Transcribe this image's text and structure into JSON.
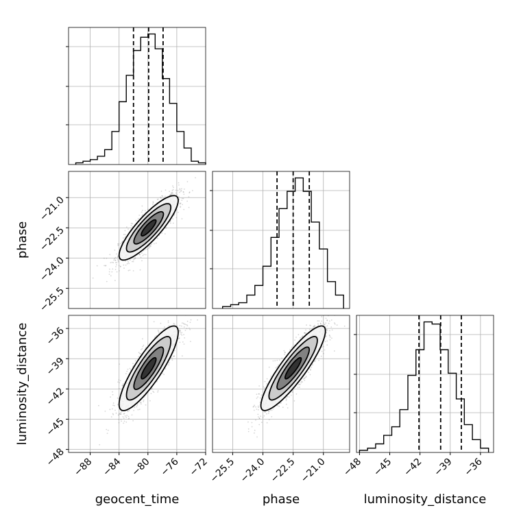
{
  "chart_data": {
    "type": "corner",
    "parameters": [
      "geocent_time",
      "phase",
      "luminosity_distance"
    ],
    "axis_labels": {
      "x": [
        "geocent_time",
        "phase",
        "luminosity_distance"
      ],
      "y": [
        "phase",
        "luminosity_distance"
      ]
    },
    "ranges": {
      "geocent_time": [
        -91,
        -72
      ],
      "phase": [
        -26.5,
        -19.7
      ],
      "luminosity_distance": [
        -48.3,
        -34.7
      ]
    },
    "ticks": {
      "geocent_time": [
        "−88",
        "−84",
        "−80",
        "−76",
        "−72"
      ],
      "phase": [
        "−25.5",
        "−24.0",
        "−22.5",
        "−21.0"
      ],
      "luminosity_distance": [
        "−48",
        "−45",
        "−42",
        "−39",
        "−36"
      ]
    },
    "tick_values": {
      "geocent_time": [
        -88,
        -84,
        -80,
        -76,
        -72
      ],
      "phase": [
        -25.5,
        -24.0,
        -22.5,
        -21.0
      ],
      "luminosity_distance": [
        -48,
        -45,
        -42,
        -39,
        -36
      ]
    },
    "histograms": {
      "geocent_time": {
        "bin_edges": [
          -90,
          -89,
          -88,
          -87,
          -86,
          -85,
          -84,
          -83,
          -82,
          -81,
          -80,
          -79,
          -78,
          -77,
          -76,
          -75,
          -74,
          -73,
          -72
        ],
        "counts": [
          1,
          2,
          3,
          5,
          9,
          20,
          38,
          54,
          69,
          77,
          79,
          70,
          52,
          37,
          20,
          10,
          2,
          1
        ]
      },
      "phase": {
        "bin_edges": [
          -26.0,
          -25.6,
          -25.2,
          -24.8,
          -24.4,
          -24.0,
          -23.6,
          -23.2,
          -22.8,
          -22.4,
          -22.0,
          -21.6,
          -21.2,
          -20.8,
          -20.4,
          -20.0
        ],
        "counts": [
          1,
          2,
          3,
          7,
          12,
          22,
          37,
          52,
          61,
          68,
          61,
          45,
          31,
          14,
          7
        ]
      },
      "luminosity_distance": {
        "bin_edges": [
          -48,
          -47.2,
          -46.4,
          -45.6,
          -44.8,
          -44.0,
          -43.2,
          -42.4,
          -41.6,
          -40.8,
          -40.0,
          -39.2,
          -38.4,
          -37.6,
          -36.8,
          -36.0,
          -35.2
        ],
        "counts": [
          1,
          2,
          4,
          8,
          12,
          20,
          36,
          48,
          61,
          60,
          48,
          37,
          25,
          13,
          6,
          2
        ]
      }
    },
    "quantiles": {
      "geocent_time": [
        -82.0,
        -79.9,
        -77.9
      ],
      "phase": [
        -23.3,
        -22.5,
        -21.7
      ],
      "luminosity_distance": [
        -42.1,
        -39.95,
        -37.9
      ]
    },
    "correlations": {
      "geocent_time|phase": 0.85,
      "geocent_time|luminosity_distance": 0.85,
      "phase|luminosity_distance": 0.88
    },
    "contour_levels": [
      0.5,
      1.0,
      1.5,
      2.0
    ],
    "grid": true,
    "colors": {
      "samples": "#888888",
      "contour_fill": "#000000",
      "lines": "#000000"
    }
  }
}
